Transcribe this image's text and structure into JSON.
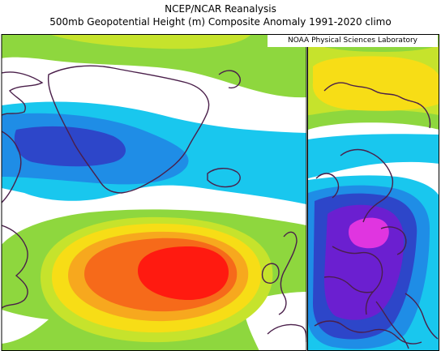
{
  "title_line1": "NCEP/NCAR Reanalysis",
  "title_line2": "500mb Geopotential Height (m) Composite Anomaly 1991-2020 climo",
  "credit": "NOAA Physical Sciences Laboratory",
  "colors": {
    "magenta": "#e035e0",
    "purple": "#6b1fd0",
    "blue_dark": "#2d46c9",
    "blue": "#1f8de6",
    "cyan": "#19c7ee",
    "white": "#ffffff",
    "green": "#8ed73e",
    "yellow_green": "#c6e32c",
    "yellow": "#f7dd16",
    "orange_light": "#f7a81e",
    "orange": "#f66a1a",
    "red": "#ff1a10",
    "coast": "#4a1f4a"
  }
}
